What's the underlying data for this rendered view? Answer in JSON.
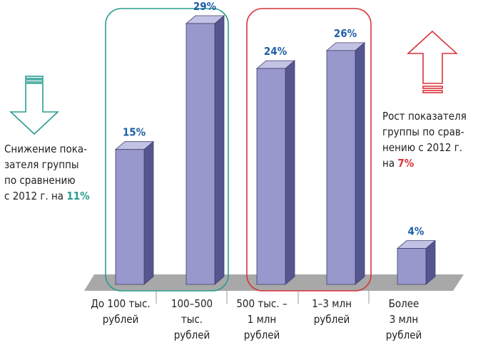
{
  "chart_data": {
    "type": "bar",
    "categories": [
      [
        "До 100 тыс.",
        "рублей"
      ],
      [
        "100–500",
        "тыс.",
        "рублей"
      ],
      [
        "500 тыс. –",
        "1 млн",
        "рублей"
      ],
      [
        "1–3 млн",
        "рублей"
      ],
      [
        "Более",
        "3 млн",
        "рублей"
      ]
    ],
    "values": [
      15,
      29,
      24,
      26,
      4
    ],
    "value_labels": [
      "15%",
      "29%",
      "24%",
      "26%",
      "4%"
    ],
    "ylim": [
      0,
      30
    ],
    "grid": false,
    "legend": "none"
  },
  "annotations": {
    "decrease": {
      "lines": [
        "Снижение пока-",
        "зателя группы",
        "по сравнению",
        "с 2012 г. на"
      ],
      "highlight": "11%"
    },
    "increase": {
      "lines": [
        "Рост показателя",
        "группы по срав-",
        "нению с 2012 г.",
        "на"
      ],
      "highlight": "7%"
    }
  },
  "colors": {
    "bar_front": "#9898cc",
    "bar_side": "#55558f",
    "bar_top": "#c2c2e4",
    "floor": "#a8a8a8",
    "value_text": "#1f5fa8",
    "decrease_accent": "#2a9d8f",
    "increase_accent": "#d9343a"
  }
}
